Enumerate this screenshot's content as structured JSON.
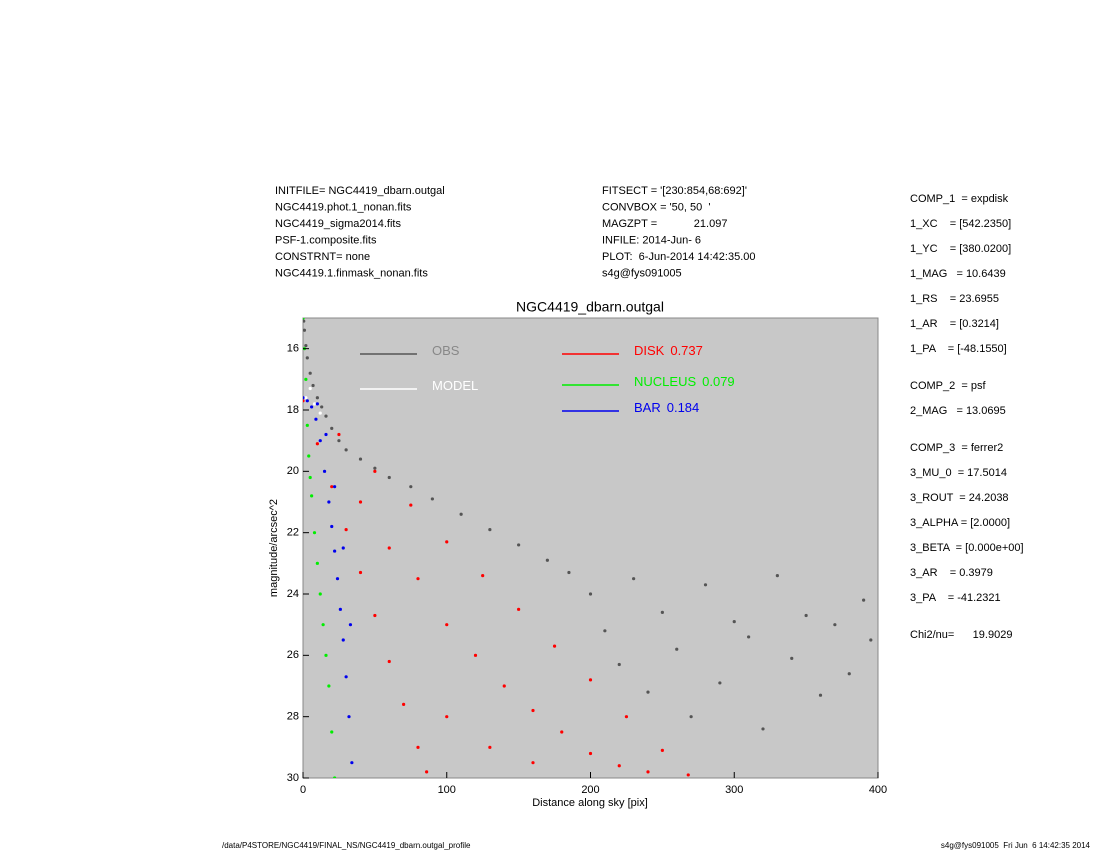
{
  "header": {
    "left": [
      "INITFILE= NGC4419_dbarn.outgal",
      "NGC4419.phot.1_nonan.fits",
      "NGC4419_sigma2014.fits",
      "PSF-1.composite.fits",
      "CONSTRNT= none",
      "NGC4419.1.finmask_nonan.fits"
    ],
    "middle": [
      "FITSECT = '[230:854,68:692]'",
      "CONVBOX = '50, 50  '",
      "MAGZPT =            21.097",
      "INFILE: 2014-Jun- 6",
      "PLOT:  6-Jun-2014 14:42:35.00",
      "s4g@fys091005"
    ]
  },
  "params": [
    [
      "COMP_1  = expdisk",
      "1_XC    = [542.2350]",
      "1_YC    = [380.0200]",
      "1_MAG   = 10.6439",
      "1_RS    = 23.6955",
      "1_AR    = [0.3214]",
      "1_PA    = [-48.1550]"
    ],
    [
      "COMP_2  = psf",
      "2_MAG   = 13.0695"
    ],
    [
      "COMP_3  = ferrer2",
      "3_MU_0  = 17.5014",
      "3_ROUT  = 24.2038",
      "3_ALPHA = [2.0000]",
      "3_BETA  = [0.000e+00]",
      "3_AR    = 0.3979",
      "3_PA    = -41.2321"
    ],
    [
      "Chi2/nu=      19.9029"
    ]
  ],
  "footer": {
    "left": "/data/P4STORE/NGC4419/FINAL_NS/NGC4419_dbarn.outgal_profile",
    "right": "s4g@fys091005  Fri Jun  6 14:42:35 2014"
  },
  "chart_data": {
    "type": "scatter",
    "title": "NGC4419_dbarn.outgal",
    "xlabel": "Distance along sky [pix]",
    "ylabel": "magnitude/arcsec^2",
    "xlim": [
      0,
      400
    ],
    "ylim": [
      30,
      15
    ],
    "xticks": [
      0,
      100,
      200,
      300,
      400
    ],
    "yticks": [
      16,
      18,
      20,
      22,
      24,
      26,
      28,
      30
    ],
    "background": "#c8c8c8",
    "series": [
      {
        "name": "OBS",
        "color": "#555555",
        "x": [
          0.5,
          1,
          2,
          3,
          5,
          7,
          10,
          13,
          16,
          20,
          25,
          30,
          40,
          50,
          60,
          75,
          90,
          110,
          130,
          150,
          170,
          185,
          200,
          210,
          220,
          230,
          240,
          250,
          260,
          270,
          280,
          290,
          300,
          310,
          320,
          330,
          340,
          350,
          360,
          370,
          380,
          390,
          395
        ],
        "values": [
          15.1,
          15.4,
          15.9,
          16.3,
          16.8,
          17.2,
          17.6,
          17.9,
          18.2,
          18.6,
          19.0,
          19.3,
          19.6,
          19.9,
          20.2,
          20.5,
          20.9,
          21.4,
          21.9,
          22.4,
          22.9,
          23.3,
          24.0,
          25.2,
          26.3,
          23.5,
          27.2,
          24.6,
          25.8,
          28.0,
          23.7,
          26.9,
          24.9,
          25.4,
          28.4,
          23.4,
          26.1,
          24.7,
          27.3,
          25.0,
          26.6,
          24.2,
          25.5
        ]
      },
      {
        "name": "MODEL",
        "color": "#ffffff",
        "x": [
          2,
          5,
          8,
          12
        ],
        "values": [
          17.6,
          17.3,
          17.8,
          18.1
        ]
      },
      {
        "name": "DISK",
        "fraction": 0.737,
        "color": "#ff0000",
        "x": [
          0,
          25,
          50,
          75,
          100,
          125,
          150,
          175,
          200,
          225,
          250,
          268,
          10,
          20,
          30,
          40,
          50,
          60,
          70,
          80,
          86,
          40,
          60,
          80,
          100,
          120,
          140,
          160,
          180,
          200,
          220,
          240,
          100,
          130,
          160
        ],
        "values": [
          17.7,
          18.8,
          20.0,
          21.1,
          22.3,
          23.4,
          24.5,
          25.7,
          26.8,
          28.0,
          29.1,
          29.9,
          19.1,
          20.5,
          21.9,
          23.3,
          24.7,
          26.2,
          27.6,
          29.0,
          29.8,
          21,
          22.5,
          23.5,
          25,
          26,
          27,
          27.8,
          28.5,
          29.2,
          29.6,
          29.8,
          28,
          29,
          29.5
        ]
      },
      {
        "name": "NUCLEUS",
        "fraction": 0.079,
        "color": "#00ee00",
        "x": [
          0,
          1,
          2,
          3,
          4,
          5,
          6,
          8,
          10,
          12,
          14,
          16,
          18,
          20,
          22
        ],
        "values": [
          15,
          16,
          17,
          18.5,
          19.5,
          20.2,
          20.8,
          22,
          23,
          24,
          25,
          26,
          27,
          28.5,
          30
        ]
      },
      {
        "name": "BAR",
        "fraction": 0.184,
        "color": "#0000ee",
        "x": [
          0,
          3,
          6,
          9,
          12,
          15,
          18,
          20,
          22,
          24,
          26,
          28,
          30,
          32,
          34,
          10,
          16,
          22,
          28,
          33
        ],
        "values": [
          17.6,
          17.7,
          17.9,
          18.3,
          19,
          20,
          21,
          21.8,
          22.6,
          23.5,
          24.5,
          25.5,
          26.7,
          28,
          29.5,
          17.8,
          18.8,
          20.5,
          22.5,
          25
        ]
      }
    ]
  }
}
